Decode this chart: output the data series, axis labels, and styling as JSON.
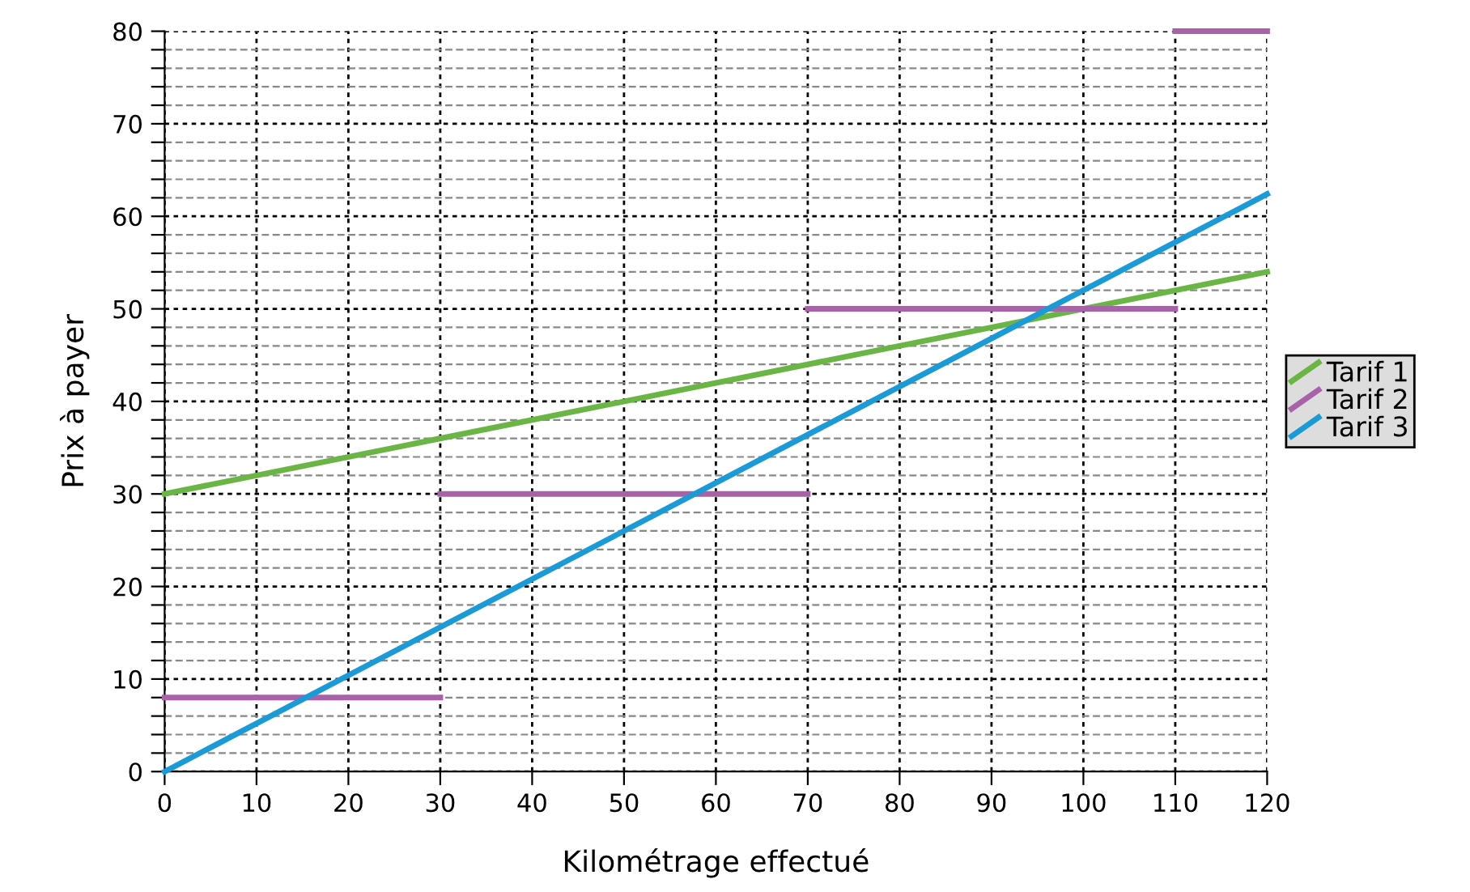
{
  "chart_data": {
    "type": "line",
    "xlabel": "Kilométrage effectué",
    "ylabel": "Prix à payer",
    "xlim": [
      0,
      120
    ],
    "ylim": [
      0,
      80
    ],
    "xticks": [
      0,
      10,
      20,
      30,
      40,
      50,
      60,
      70,
      80,
      90,
      100,
      110,
      120
    ],
    "yticks": [
      0,
      {
        "value": 2,
        "label": null
      },
      {
        "value": 4,
        "label": null
      },
      {
        "value": 6,
        "label": null
      },
      {
        "value": 8,
        "label": null
      },
      10,
      {
        "value": 12,
        "label": null
      },
      {
        "value": 14,
        "label": null
      },
      {
        "value": 16,
        "label": null
      },
      {
        "value": 18,
        "label": null
      },
      20,
      {
        "value": 22,
        "label": null
      },
      {
        "value": 24,
        "label": null
      },
      {
        "value": 26,
        "label": null
      },
      {
        "value": 28,
        "label": null
      },
      30,
      {
        "value": 32,
        "label": null
      },
      {
        "value": 34,
        "label": null
      },
      {
        "value": 36,
        "label": null
      },
      {
        "value": 38,
        "label": null
      },
      40,
      {
        "value": 42,
        "label": null
      },
      {
        "value": 44,
        "label": null
      },
      {
        "value": 46,
        "label": null
      },
      {
        "value": 48,
        "label": null
      },
      50,
      {
        "value": 52,
        "label": null
      },
      {
        "value": 54,
        "label": null
      },
      {
        "value": 56,
        "label": null
      },
      {
        "value": 58,
        "label": null
      },
      60,
      {
        "value": 62,
        "label": null
      },
      {
        "value": 64,
        "label": null
      },
      {
        "value": 66,
        "label": null
      },
      {
        "value": 68,
        "label": null
      },
      70,
      {
        "value": 72,
        "label": null
      },
      {
        "value": 74,
        "label": null
      },
      {
        "value": 76,
        "label": null
      },
      {
        "value": 78,
        "label": null
      },
      80
    ],
    "grid": true,
    "legend": "right",
    "marker": "none",
    "line_style": "solid",
    "series": [
      {
        "name": "Tarif 1",
        "color": "#6ab545",
        "x": [
          0,
          120
        ],
        "values": [
          30,
          54
        ]
      },
      {
        "name": "Tarif 2",
        "color": "#a862a8",
        "x": [
          0,
          30,
          null,
          30,
          70,
          null,
          70,
          110,
          null,
          110,
          120
        ],
        "values": [
          8,
          8,
          null,
          30,
          30,
          null,
          50,
          50,
          null,
          80,
          80
        ]
      },
      {
        "name": "Tarif 3",
        "color": "#1b9ad6",
        "x": [
          0,
          120
        ],
        "values": [
          0,
          62.4
        ]
      }
    ]
  }
}
